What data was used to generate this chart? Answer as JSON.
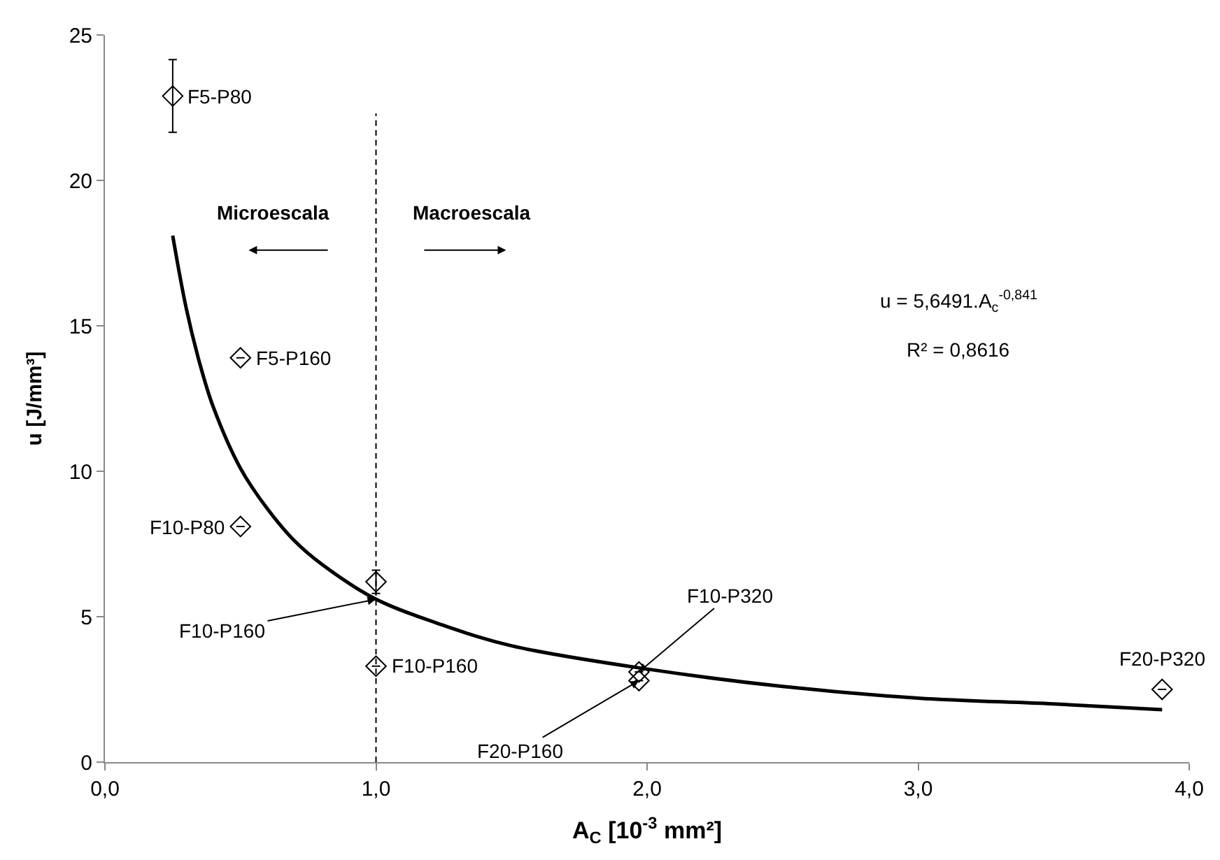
{
  "chart_data": {
    "type": "scatter",
    "xlabel": "A$_{C}$ [10$^{-3}$ mm²]",
    "ylabel": "u [J/mm³]",
    "xlim": [
      0,
      4
    ],
    "ylim": [
      0,
      25
    ],
    "xticks": [
      {
        "value": 0,
        "label": "0,0"
      },
      {
        "value": 1,
        "label": "1,0"
      },
      {
        "value": 2,
        "label": "2,0"
      },
      {
        "value": 3,
        "label": "3,0"
      },
      {
        "value": 4,
        "label": "4,0"
      }
    ],
    "yticks": [
      0,
      5,
      10,
      15,
      20,
      25
    ],
    "marker": "diamond",
    "series": [
      {
        "color": "#000000",
        "x": [
          0.25,
          0.5,
          0.5,
          1.0,
          1.0,
          1.97,
          1.97,
          3.9
        ],
        "values": [
          22.9,
          13.9,
          8.1,
          6.2,
          3.3,
          3.1,
          2.8,
          2.5
        ],
        "errors": [
          1.25,
          null,
          null,
          0.4,
          null,
          null,
          null,
          null
        ]
      },
      {
        "type": "line",
        "color": "#000000",
        "marker": "none",
        "x": [
          0.25,
          0.3,
          0.35,
          0.4,
          0.5,
          0.6,
          0.7,
          0.8,
          1.0,
          1.25,
          1.5,
          2.0,
          2.5,
          3.0,
          3.5,
          3.9
        ],
        "values": [
          18.1,
          15.6,
          13.7,
          12.2,
          10.1,
          8.7,
          7.6,
          6.8,
          5.6,
          4.7,
          4.0,
          3.2,
          2.6,
          2.2,
          2.0,
          1.8
        ]
      }
    ],
    "ref_lines": [
      {
        "axis": "x",
        "value": 1.0,
        "label": null,
        "color": "#000000",
        "line_style": "dashed"
      }
    ],
    "annotations": [
      {
        "text": "F5-P80",
        "x": 0.25,
        "y": 22.9
      },
      {
        "text": "F5-P160",
        "x": 0.5,
        "y": 13.9
      },
      {
        "text": "F10-P80",
        "x": 0.5,
        "y": 8.1
      },
      {
        "text": "F10-P160",
        "x": 1.0,
        "y": 5.6
      },
      {
        "text": "F10-P160",
        "x": 1.0,
        "y": 3.3
      },
      {
        "text": "F10-P320",
        "x": 1.97,
        "y": 3.1
      },
      {
        "text": "F20-P160",
        "x": 1.97,
        "y": 2.8
      },
      {
        "text": "F20-P320",
        "x": 3.9,
        "y": 2.5
      },
      "Microescala",
      "Macroescala",
      "u = 5,6491.A$_{c}$$^{-0,841}$",
      "R² = 0,8616"
    ]
  }
}
